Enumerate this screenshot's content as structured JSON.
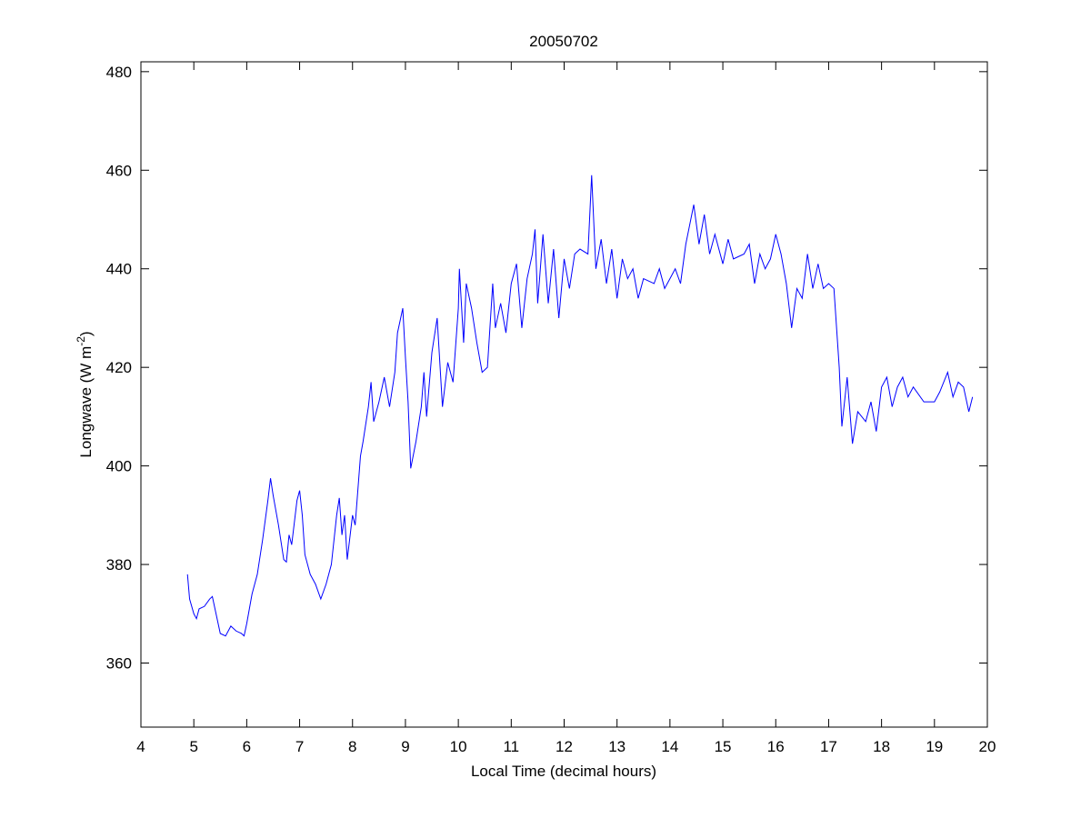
{
  "chart_data": {
    "type": "line",
    "title": "20050702",
    "xlabel": "Local Time (decimal hours)",
    "ylabel": {
      "main": "Longwave (W m",
      "superscript": "-2",
      "tail": ")"
    },
    "xlim": [
      4,
      20
    ],
    "ylim": [
      347,
      482
    ],
    "xticks": [
      4,
      5,
      6,
      7,
      8,
      9,
      10,
      11,
      12,
      13,
      14,
      15,
      16,
      17,
      18,
      19,
      20
    ],
    "yticks": [
      360,
      380,
      400,
      420,
      440,
      460,
      480
    ],
    "grid": false,
    "x": [
      4.88,
      4.92,
      5.0,
      5.05,
      5.1,
      5.2,
      5.3,
      5.35,
      5.4,
      5.5,
      5.6,
      5.7,
      5.8,
      5.9,
      5.95,
      6.0,
      6.1,
      6.2,
      6.3,
      6.4,
      6.45,
      6.5,
      6.6,
      6.7,
      6.75,
      6.8,
      6.85,
      6.95,
      7.0,
      7.05,
      7.1,
      7.2,
      7.3,
      7.4,
      7.5,
      7.6,
      7.7,
      7.75,
      7.8,
      7.85,
      7.9,
      8.0,
      8.05,
      8.1,
      8.15,
      8.2,
      8.3,
      8.35,
      8.4,
      8.5,
      8.6,
      8.7,
      8.8,
      8.85,
      8.95,
      9.0,
      9.05,
      9.1,
      9.2,
      9.3,
      9.35,
      9.4,
      9.5,
      9.6,
      9.7,
      9.8,
      9.9,
      10.0,
      10.02,
      10.1,
      10.15,
      10.25,
      10.35,
      10.45,
      10.55,
      10.65,
      10.7,
      10.8,
      10.9,
      11.0,
      11.1,
      11.2,
      11.3,
      11.4,
      11.45,
      11.5,
      11.6,
      11.7,
      11.8,
      11.9,
      12.0,
      12.1,
      12.2,
      12.3,
      12.45,
      12.52,
      12.6,
      12.7,
      12.8,
      12.9,
      13.0,
      13.1,
      13.2,
      13.3,
      13.4,
      13.5,
      13.7,
      13.8,
      13.9,
      14.0,
      14.1,
      14.2,
      14.3,
      14.45,
      14.55,
      14.65,
      14.75,
      14.85,
      15.0,
      15.1,
      15.2,
      15.4,
      15.5,
      15.6,
      15.7,
      15.8,
      15.9,
      16.0,
      16.1,
      16.2,
      16.3,
      16.4,
      16.5,
      16.6,
      16.7,
      16.8,
      16.9,
      17.0,
      17.1,
      17.2,
      17.25,
      17.35,
      17.45,
      17.55,
      17.7,
      17.8,
      17.9,
      18.0,
      18.1,
      18.2,
      18.3,
      18.4,
      18.5,
      18.6,
      18.8,
      19.0,
      19.1,
      19.25,
      19.35,
      19.45,
      19.55,
      19.65,
      19.72
    ],
    "series": [
      {
        "color": "#0000ff",
        "values": [
          378,
          373,
          370,
          369,
          371,
          371.5,
          373,
          373.5,
          371,
          366,
          365.5,
          367.5,
          366.5,
          366,
          365.5,
          368,
          374,
          378,
          385,
          393,
          397.5,
          394,
          388,
          381,
          380.5,
          386,
          384,
          393,
          395,
          390,
          382,
          378,
          376,
          373,
          376,
          380,
          390,
          393.5,
          386,
          390,
          381,
          390,
          388,
          395,
          402,
          405,
          412,
          417,
          409,
          413,
          418,
          412,
          419,
          427,
          432,
          422,
          413,
          399.5,
          405,
          412,
          419,
          410,
          423,
          430,
          412,
          421,
          417,
          432,
          440,
          425,
          437,
          432,
          425,
          419,
          420,
          437,
          428,
          433,
          427,
          437,
          441,
          428,
          438,
          443,
          448,
          433,
          447,
          433,
          444,
          430,
          442,
          436,
          443,
          444,
          443,
          459,
          440,
          446,
          437,
          444,
          434,
          442,
          438,
          440,
          434,
          438,
          437,
          440,
          436,
          438,
          440,
          437,
          445,
          453,
          445,
          451,
          443,
          447,
          441,
          446,
          442,
          443,
          445,
          437,
          443,
          440,
          442,
          447,
          443,
          437,
          428,
          436,
          434,
          443,
          436,
          441,
          436,
          437,
          436,
          420,
          408,
          418,
          404.5,
          411,
          409,
          413,
          407,
          416,
          418,
          412,
          416,
          418,
          414,
          416,
          413,
          413,
          415,
          419,
          414,
          417,
          416,
          411,
          414
        ]
      }
    ]
  }
}
